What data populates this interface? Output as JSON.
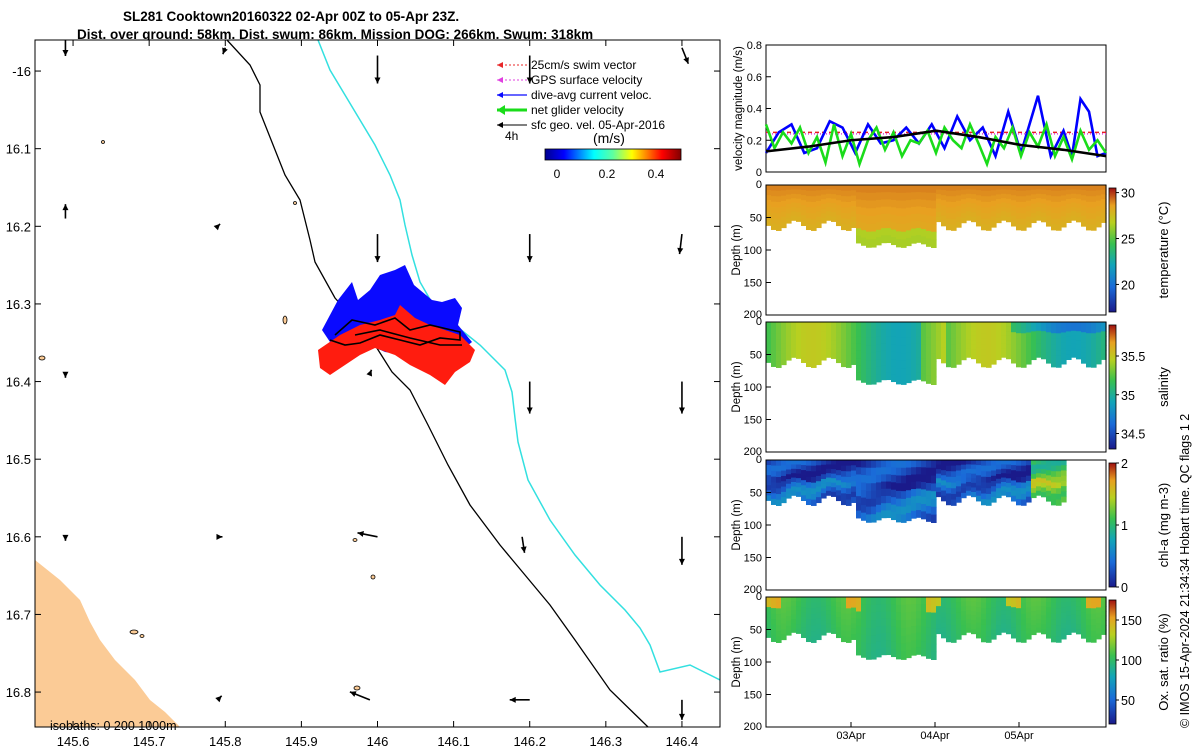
{
  "title": {
    "line1": "SL281 Cooktown20160322 02-Apr 00Z to 05-Apr 23Z.",
    "line2": "Dist. over ground: 58km. Dist. swum: 86km. Mission DOG: 266km. Swum: 318km"
  },
  "colors": {
    "land": "#fbcb96",
    "track_cyan": "#33e0e0",
    "glider_blue": "#0a0aff",
    "glider_red": "#ff1c0f",
    "swim_red": "#e8282a",
    "gps_magenta": "#e040e0",
    "net_green": "#1adc1a"
  },
  "side_note": "© IMOS 15-Apr-2024 21:34:34 Hobart time. QC flags 1  2",
  "chart_data": [
    {
      "type": "map",
      "x_ticks": [
        "145.6",
        "145.7",
        "145.8",
        "145.9",
        "146",
        "146.1",
        "146.2",
        "146.3",
        "146.4"
      ],
      "y_ticks": [
        "-16",
        "16.1",
        "16.2",
        "16.3",
        "16.4",
        "16.5",
        "16.6",
        "16.7",
        "16.8"
      ],
      "xlim": [
        145.55,
        146.45
      ],
      "ylim": [
        -16.845,
        -15.96
      ],
      "legend": {
        "position": "top-right",
        "entries": [
          "25cm/s swim vector",
          "GPS surface velocity",
          "dive-avg current veloc.",
          "net glider velocity",
          "sfc geo. vel. 05-Apr-2016"
        ],
        "time_label": "4h"
      },
      "colorbar": {
        "label": "(m/s)",
        "ticks": [
          "0",
          "0.2",
          "0.4"
        ],
        "range": [
          0,
          0.5
        ]
      },
      "isobath_label": "isobaths: 0   200  1000m",
      "current_arrows": [
        {
          "lon": 145.59,
          "lat": -15.96,
          "u": 0.0,
          "v": -0.2
        },
        {
          "lon": 145.8,
          "lat": -15.97,
          "u": -0.03,
          "v": -0.08
        },
        {
          "lon": 146.0,
          "lat": -15.98,
          "u": 0.0,
          "v": -0.35
        },
        {
          "lon": 146.2,
          "lat": -15.98,
          "u": 0.0,
          "v": -0.35
        },
        {
          "lon": 146.4,
          "lat": -15.97,
          "u": 0.08,
          "v": -0.2
        },
        {
          "lon": 145.59,
          "lat": -16.19,
          "u": 0.0,
          "v": 0.18
        },
        {
          "lon": 145.79,
          "lat": -16.2,
          "u": 0.03,
          "v": 0.03
        },
        {
          "lon": 146.0,
          "lat": -16.21,
          "u": 0.0,
          "v": -0.35
        },
        {
          "lon": 146.2,
          "lat": -16.21,
          "u": 0.0,
          "v": -0.35
        },
        {
          "lon": 146.4,
          "lat": -16.21,
          "u": -0.03,
          "v": -0.25
        },
        {
          "lon": 145.59,
          "lat": -16.39,
          "u": 0.0,
          "v": -0.05
        },
        {
          "lon": 145.99,
          "lat": -16.39,
          "u": 0.02,
          "v": 0.05
        },
        {
          "lon": 146.2,
          "lat": -16.4,
          "u": 0.0,
          "v": -0.4
        },
        {
          "lon": 146.4,
          "lat": -16.4,
          "u": 0.0,
          "v": -0.4
        },
        {
          "lon": 145.59,
          "lat": -16.6,
          "u": 0.0,
          "v": -0.05
        },
        {
          "lon": 145.79,
          "lat": -16.6,
          "u": 0.06,
          "v": 0.0
        },
        {
          "lon": 146.0,
          "lat": -16.6,
          "u": -0.25,
          "v": 0.05
        },
        {
          "lon": 146.19,
          "lat": -16.6,
          "u": 0.03,
          "v": -0.2
        },
        {
          "lon": 146.4,
          "lat": -16.6,
          "u": 0.0,
          "v": -0.35
        },
        {
          "lon": 145.99,
          "lat": -16.81,
          "u": -0.25,
          "v": 0.1
        },
        {
          "lon": 146.2,
          "lat": -16.81,
          "u": -0.25,
          "v": 0.0
        },
        {
          "lon": 145.79,
          "lat": -16.81,
          "u": 0.05,
          "v": 0.05
        },
        {
          "lon": 146.4,
          "lat": -16.81,
          "u": 0.0,
          "v": -0.25
        }
      ]
    },
    {
      "type": "line",
      "ylabel": "velocity magnitude (m/s)",
      "ylim": [
        0,
        0.8
      ],
      "y_ticks": [
        "0",
        "0.2",
        "0.4",
        "0.6",
        "0.8"
      ],
      "xlim": [
        0,
        4
      ],
      "series": [
        {
          "color": "#e82020",
          "style": "dashed",
          "x": [
            0,
            0.5,
            1,
            1.5,
            2,
            2.5,
            3,
            3.5,
            4
          ],
          "values": [
            0.25,
            0.25,
            0.25,
            0.25,
            0.25,
            0.25,
            0.25,
            0.25,
            0.25
          ]
        },
        {
          "color": "#e040e0",
          "style": "dotted",
          "x": [
            0,
            0.5,
            1,
            1.5,
            2,
            2.5,
            3,
            3.5,
            4
          ],
          "values": [
            0.24,
            0.24,
            0.24,
            0.24,
            0.24,
            0.24,
            0.24,
            0.24,
            0.24
          ]
        },
        {
          "color": "#0000ff",
          "style": "solid",
          "x": [
            0,
            0.15,
            0.3,
            0.45,
            0.6,
            0.75,
            0.9,
            1.05,
            1.2,
            1.35,
            1.5,
            1.65,
            1.8,
            1.95,
            2.1,
            2.25,
            2.4,
            2.55,
            2.7,
            2.85,
            3.0,
            3.1,
            3.2,
            3.35,
            3.5,
            3.6,
            3.7,
            3.8,
            3.9,
            4.0
          ],
          "values": [
            0.12,
            0.25,
            0.3,
            0.12,
            0.15,
            0.32,
            0.28,
            0.12,
            0.3,
            0.18,
            0.2,
            0.28,
            0.18,
            0.3,
            0.15,
            0.35,
            0.2,
            0.28,
            0.1,
            0.38,
            0.12,
            0.3,
            0.48,
            0.1,
            0.26,
            0.1,
            0.46,
            0.38,
            0.1,
            0.12
          ]
        },
        {
          "color": "#1adc1a",
          "style": "solid",
          "x": [
            0,
            0.1,
            0.2,
            0.3,
            0.4,
            0.5,
            0.6,
            0.7,
            0.8,
            0.9,
            1.0,
            1.1,
            1.2,
            1.3,
            1.4,
            1.5,
            1.6,
            1.7,
            1.8,
            1.9,
            2.0,
            2.1,
            2.2,
            2.3,
            2.4,
            2.5,
            2.6,
            2.7,
            2.8,
            2.9,
            3.0,
            3.1,
            3.2,
            3.3,
            3.4,
            3.5,
            3.6,
            3.7,
            3.8,
            3.9,
            4.0
          ],
          "values": [
            0.3,
            0.15,
            0.25,
            0.18,
            0.28,
            0.12,
            0.22,
            0.06,
            0.3,
            0.1,
            0.24,
            0.05,
            0.2,
            0.28,
            0.14,
            0.25,
            0.1,
            0.2,
            0.18,
            0.26,
            0.12,
            0.28,
            0.2,
            0.15,
            0.3,
            0.18,
            0.05,
            0.22,
            0.15,
            0.28,
            0.1,
            0.25,
            0.16,
            0.3,
            0.1,
            0.22,
            0.08,
            0.26,
            0.14,
            0.2,
            0.12
          ]
        },
        {
          "color": "#000000",
          "style": "solid",
          "x": [
            0,
            0.5,
            1,
            1.5,
            2,
            2.5,
            3,
            3.5,
            4
          ],
          "values": [
            0.13,
            0.16,
            0.2,
            0.22,
            0.26,
            0.22,
            0.17,
            0.14,
            0.1
          ]
        }
      ]
    },
    {
      "type": "heatmap",
      "ylabel": "Depth (m)",
      "ylim": [
        0,
        200
      ],
      "y_ticks": [
        "0",
        "50",
        "100",
        "150",
        "200"
      ],
      "colorbar": {
        "label": "temperature (°C)",
        "ticks": [
          "30",
          "25",
          "20"
        ],
        "range": [
          17,
          30.5
        ]
      },
      "dominant_value": 29
    },
    {
      "type": "heatmap",
      "ylabel": "Depth (m)",
      "ylim": [
        0,
        200
      ],
      "y_ticks": [
        "0",
        "50",
        "100",
        "150",
        "200"
      ],
      "colorbar": {
        "label": "salinity",
        "ticks": [
          "35.5",
          "35",
          "34.5"
        ],
        "range": [
          34.3,
          35.9
        ]
      },
      "dominant_value": 35.2
    },
    {
      "type": "heatmap",
      "ylabel": "Depth (m)",
      "ylim": [
        0,
        200
      ],
      "y_ticks": [
        "0",
        "50",
        "100",
        "150",
        "200"
      ],
      "colorbar": {
        "label": "chl-a (mg m-3)",
        "ticks": [
          "2",
          "1",
          "0"
        ],
        "range": [
          0,
          2
        ]
      },
      "dominant_value": 0.3
    },
    {
      "type": "heatmap",
      "ylabel": "Depth (m)",
      "ylim": [
        0,
        200
      ],
      "y_ticks": [
        "0",
        "50",
        "100",
        "150",
        "200"
      ],
      "x_ticks": [
        "03Apr",
        "04Apr",
        "05Apr"
      ],
      "colorbar": {
        "label": "Ox. sat. ratio (%)",
        "ticks": [
          "150",
          "100",
          "50"
        ],
        "range": [
          20,
          175
        ]
      },
      "dominant_value": 105
    }
  ]
}
